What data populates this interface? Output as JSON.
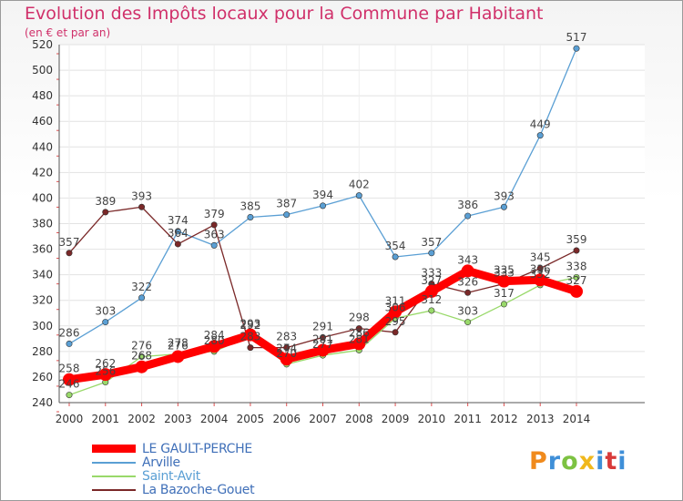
{
  "title": "Evolution des Impôts locaux pour la Commune par Habitant",
  "subtitle": "(en € et par an)",
  "logo_text": "Proxiti",
  "chart_data": {
    "type": "line",
    "title": "Evolution des Impôts locaux pour la Commune par Habitant",
    "ylabel": "(en € et par an)",
    "xlabel": "",
    "ylim": [
      240,
      520
    ],
    "yticks": [
      240,
      260,
      280,
      300,
      320,
      340,
      360,
      380,
      400,
      420,
      440,
      460,
      480,
      500,
      520
    ],
    "x": [
      "2000",
      "2001",
      "2002",
      "2003",
      "2004",
      "2005",
      "2006",
      "2007",
      "2008",
      "2009",
      "2010",
      "2011",
      "2012",
      "2013",
      "2014"
    ],
    "grid": true,
    "legend_position": "bottom-left",
    "series": [
      {
        "name": "LE GAULT-PERCHE",
        "color": "#ff0000",
        "values": [
          258,
          262,
          268,
          276,
          284,
          293,
          274,
          281,
          286,
          311,
          327,
          343,
          335,
          336,
          327
        ]
      },
      {
        "name": "Arville",
        "color": "#5a9fd4",
        "values": [
          286,
          303,
          322,
          374,
          363,
          385,
          387,
          394,
          402,
          354,
          357,
          386,
          393,
          449,
          517
        ]
      },
      {
        "name": "Saint-Avit",
        "color": "#99d96a",
        "values": [
          246,
          256,
          276,
          278,
          280,
          292,
          270,
          277,
          281,
          306,
          312,
          303,
          317,
          332,
          338
        ]
      },
      {
        "name": "La Bazoche-Gouet",
        "color": "#7a2828",
        "values": [
          357,
          389,
          393,
          364,
          379,
          283,
          283,
          291,
          298,
          295,
          333,
          326,
          333,
          345,
          359
        ]
      }
    ]
  }
}
